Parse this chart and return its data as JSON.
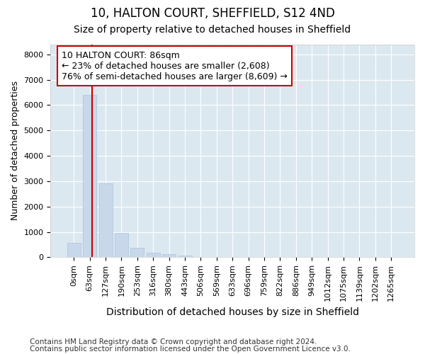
{
  "title_line1": "10, HALTON COURT, SHEFFIELD, S12 4ND",
  "title_line2": "Size of property relative to detached houses in Sheffield",
  "xlabel": "Distribution of detached houses by size in Sheffield",
  "ylabel": "Number of detached properties",
  "bar_color": "#c8d8ea",
  "bar_edgecolor": "#b0c8de",
  "background_color": "#dce8f0",
  "grid_color": "#ffffff",
  "annotation_box_edgecolor": "#cc0000",
  "vline_color": "#cc0000",
  "fig_background": "#ffffff",
  "categories": [
    "0sqm",
    "63sqm",
    "127sqm",
    "190sqm",
    "253sqm",
    "316sqm",
    "380sqm",
    "443sqm",
    "506sqm",
    "569sqm",
    "633sqm",
    "696sqm",
    "759sqm",
    "822sqm",
    "886sqm",
    "949sqm",
    "1012sqm",
    "1075sqm",
    "1139sqm",
    "1202sqm",
    "1265sqm"
  ],
  "values": [
    560,
    6400,
    2920,
    970,
    380,
    175,
    120,
    75,
    0,
    0,
    0,
    0,
    0,
    0,
    0,
    0,
    0,
    0,
    0,
    0,
    0
  ],
  "property_label": "10 HALTON COURT: 86sqm",
  "annotation_line2": "← 23% of detached houses are smaller (2,608)",
  "annotation_line3": "76% of semi-detached houses are larger (8,609) →",
  "vline_x_index": 1.15,
  "ylim": [
    0,
    8400
  ],
  "yticks": [
    0,
    1000,
    2000,
    3000,
    4000,
    5000,
    6000,
    7000,
    8000
  ],
  "footnote_line1": "Contains HM Land Registry data © Crown copyright and database right 2024.",
  "footnote_line2": "Contains public sector information licensed under the Open Government Licence v3.0.",
  "title_fontsize": 12,
  "subtitle_fontsize": 10,
  "ylabel_fontsize": 9,
  "xlabel_fontsize": 10,
  "tick_fontsize": 8,
  "annotation_fontsize": 9,
  "footnote_fontsize": 7.5
}
